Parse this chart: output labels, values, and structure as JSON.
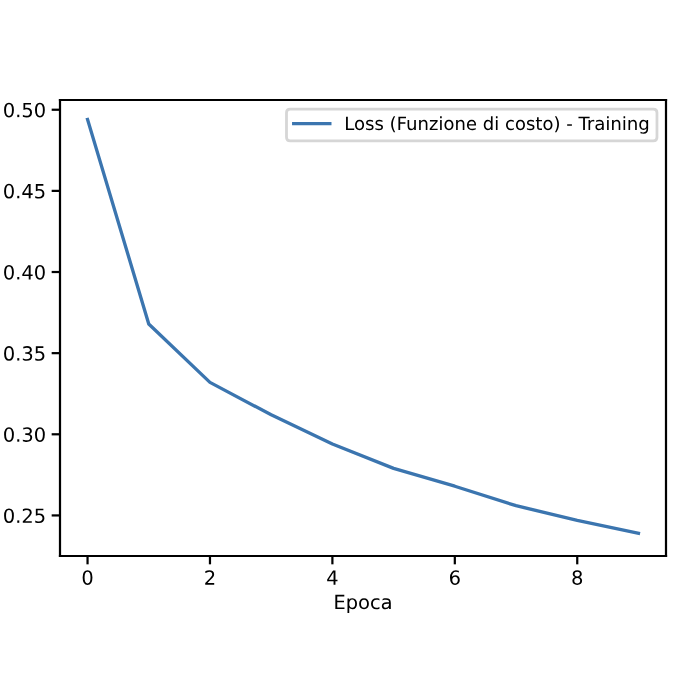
{
  "chart_data": {
    "type": "line",
    "xlabel": "Epoca",
    "x": [
      0,
      1,
      2,
      3,
      4,
      5,
      6,
      7,
      8,
      9
    ],
    "series": [
      {
        "name": "Loss (Funzione di costo) - Training",
        "color": "#3b75af",
        "values": [
          0.494,
          0.368,
          0.332,
          0.312,
          0.294,
          0.279,
          0.268,
          0.256,
          0.247,
          0.239
        ]
      }
    ],
    "xlim": [
      -0.45,
      9.45
    ],
    "ylim": [
      0.225,
      0.506
    ],
    "xticks": [
      0,
      2,
      4,
      6,
      8
    ],
    "yticks": [
      0.25,
      {
        "value": 0.3,
        "label": "0.30"
      },
      0.35,
      {
        "value": 0.4,
        "label": "0.40"
      },
      0.45,
      {
        "value": 0.5,
        "label": "0.50"
      }
    ],
    "legend": "top right",
    "grid": false
  }
}
